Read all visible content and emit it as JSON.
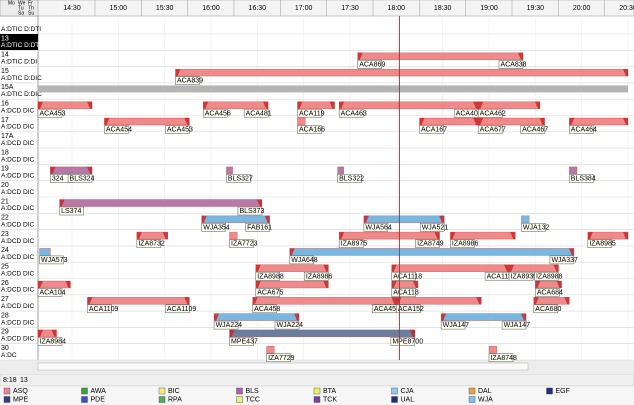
{
  "header": {
    "day_cells": [
      "Mo",
      "We",
      "Fr",
      "Tu",
      "Th",
      "Sa",
      "Su"
    ]
  },
  "timeline": {
    "xlim": [
      "14:08",
      "20:30"
    ],
    "ticks": [
      "14:30",
      "15:00",
      "15:30",
      "16:00",
      "16:30",
      "17:00",
      "17:30",
      "18:00",
      "18:30",
      "19:00",
      "19:30",
      "20:00",
      "20:30"
    ],
    "current_time": "18:02"
  },
  "rows": [
    {
      "label": "A:DTIC D:DTI",
      "flights": []
    },
    {
      "number": "13",
      "label": "A:DTIC D:DTI",
      "selected": true,
      "flights": []
    },
    {
      "number": "14",
      "label": "A:DTIC D:DI",
      "flights": [
        {
          "start": "17:35",
          "end": "19:22",
          "color": "#f08a8a",
          "labels": [
            "ACA869",
            "ACA838"
          ]
        }
      ]
    },
    {
      "number": "15",
      "label": "A:DTIC D:DIC",
      "flights": [
        {
          "start": "15:37",
          "end": "20:30",
          "color": "#f08a8a",
          "labels": [
            "ACA839"
          ]
        }
      ]
    },
    {
      "number": "15A",
      "label": "A:DTIC D:DIC",
      "flights": [
        {
          "start": "14:08",
          "end": "20:30",
          "color": "#b4b4b4",
          "labels": []
        }
      ]
    },
    {
      "number": "16",
      "label": "A:DCD DIC",
      "flights": [
        {
          "start": "14:08",
          "end": "14:43",
          "color": "#f08a8a",
          "labels": [
            "ACA453"
          ]
        },
        {
          "start": "15:55",
          "end": "16:37",
          "color": "#f08a8a",
          "labels": [
            "ACA456",
            "ACA481"
          ]
        },
        {
          "start": "16:56",
          "end": "17:20",
          "color": "#f08a8a",
          "labels": [
            "ACA119"
          ]
        },
        {
          "start": "17:23",
          "end": "18:53",
          "color": "#f08a8a",
          "labels": [
            "ACA463",
            "ACA405"
          ]
        },
        {
          "start": "18:53",
          "end": "19:33",
          "color": "#f08a8a",
          "labels": [
            "ACA462"
          ]
        }
      ]
    },
    {
      "number": "17",
      "label": "A:DCD DIC",
      "flights": [
        {
          "start": "14:51",
          "end": "15:46",
          "color": "#f08a8a",
          "labels": [
            "ACA454",
            "ACA453"
          ]
        },
        {
          "start": "16:56",
          "end": "17:01",
          "color": "#f08a8a",
          "labels": [
            "ACA166"
          ]
        },
        {
          "start": "18:15",
          "end": "18:53",
          "color": "#f08a8a",
          "labels": [
            "ACA167"
          ]
        },
        {
          "start": "18:53",
          "end": "19:36",
          "color": "#f08a8a",
          "labels": [
            "ACA677",
            "ACA467"
          ]
        },
        {
          "start": "19:52",
          "end": "20:30",
          "color": "#f08a8a",
          "labels": [
            "ACA464"
          ]
        }
      ]
    },
    {
      "number": "17A",
      "label": "A:DCD DIC",
      "flights": []
    },
    {
      "number": "18",
      "label": "A:DCD DIC",
      "flights": []
    },
    {
      "number": "19",
      "label": "A:DCD DIC",
      "flights": [
        {
          "start": "14:16",
          "end": "14:43",
          "color": "#b878a8",
          "labels": [
            "324",
            "BLS324"
          ]
        },
        {
          "start": "16:10",
          "end": "16:14",
          "color": "#b878a8",
          "labels": [
            "BLS327"
          ]
        },
        {
          "start": "17:22",
          "end": "17:26",
          "color": "#b878a8",
          "labels": [
            "BLS322"
          ]
        },
        {
          "start": "19:52",
          "end": "19:57",
          "color": "#b878a8",
          "labels": [
            "BLS384"
          ]
        }
      ]
    },
    {
      "number": "20",
      "label": "A:DCD DIC",
      "flights": []
    },
    {
      "number": "21",
      "label": "A:DCD DIC",
      "flights": [
        {
          "start": "14:22",
          "end": "16:33",
          "color": "#b878a8",
          "labels": [
            "LS374",
            "BLS373"
          ]
        }
      ]
    },
    {
      "number": "22",
      "label": "A:DCD DIC",
      "flights": [
        {
          "start": "15:54",
          "end": "16:38",
          "color": "#78b8e0",
          "labels": [
            "WJA354",
            "FAB161"
          ]
        },
        {
          "start": "17:39",
          "end": "18:31",
          "color": "#78b8e0",
          "labels": [
            "WJA564",
            "WJA521"
          ]
        },
        {
          "start": "19:21",
          "end": "19:26",
          "color": "#78b8e0",
          "labels": [
            "WJA132"
          ]
        }
      ]
    },
    {
      "number": "23",
      "label": "A:DCD DIC",
      "flights": [
        {
          "start": "15:12",
          "end": "15:32",
          "color": "#f08a8a",
          "labels": [
            "IZA8732"
          ]
        },
        {
          "start": "16:12",
          "end": "16:17",
          "color": "#f08a8a",
          "labels": [
            "IZA7723"
          ]
        },
        {
          "start": "17:23",
          "end": "18:28",
          "color": "#f08a8a",
          "labels": [
            "IZA8975",
            "IZA8749"
          ]
        },
        {
          "start": "18:35",
          "end": "19:17",
          "color": "#f08a8a",
          "labels": [
            "IZA8986"
          ]
        },
        {
          "start": "20:04",
          "end": "20:30",
          "color": "#f08a8a",
          "labels": [
            "IZA8985"
          ]
        }
      ]
    },
    {
      "number": "24",
      "label": "A:DCD DIC",
      "flights": [
        {
          "start": "14:09",
          "end": "14:16",
          "color": "#78b8e0",
          "labels": [
            "WJA573"
          ]
        },
        {
          "start": "16:51",
          "end": "19:55",
          "color": "#78b8e0",
          "labels": [
            "WJA648",
            "WJA337"
          ]
        }
      ]
    },
    {
      "number": "25",
      "label": "A:DCD DIC",
      "flights": [
        {
          "start": "16:29",
          "end": "17:16",
          "color": "#f08a8a",
          "labels": [
            "IZA8988",
            "IZA8986"
          ]
        },
        {
          "start": "17:57",
          "end": "19:13",
          "color": "#f08a8a",
          "labels": [
            "ACA1118",
            "ACA1185"
          ]
        },
        {
          "start": "19:13",
          "end": "19:45",
          "color": "#f08a8a",
          "labels": [
            "IZA8939",
            "IZA8988"
          ]
        }
      ]
    },
    {
      "number": "26",
      "label": "A:DCD DIC",
      "flights": [
        {
          "start": "14:08",
          "end": "14:29",
          "color": "#f08a8a",
          "labels": [
            "ACA104"
          ]
        },
        {
          "start": "16:29",
          "end": "17:16",
          "color": "#f08a8a",
          "labels": [
            "ACA675"
          ]
        },
        {
          "start": "17:57",
          "end": "18:14",
          "color": "#f08a8a",
          "labels": [
            "ACA118"
          ]
        },
        {
          "start": "19:30",
          "end": "19:47",
          "color": "#f08a8a",
          "labels": [
            "ACA684"
          ]
        }
      ]
    },
    {
      "number": "27",
      "label": "A:DCD DIC",
      "flights": [
        {
          "start": "14:40",
          "end": "15:46",
          "color": "#f08a8a",
          "labels": [
            "ACA1109",
            "ACA1109"
          ]
        },
        {
          "start": "16:27",
          "end": "18:00",
          "color": "#f08a8a",
          "labels": [
            "ACA458",
            "ACA459"
          ]
        },
        {
          "start": "18:00",
          "end": "18:55",
          "color": "#f08a8a",
          "labels": [
            "ACA152"
          ]
        },
        {
          "start": "19:29",
          "end": "19:52",
          "color": "#f08a8a",
          "labels": [
            "ACA680"
          ]
        }
      ]
    },
    {
      "number": "28",
      "label": "A:DCD DIC",
      "flights": [
        {
          "start": "16:02",
          "end": "16:57",
          "color": "#78b8e0",
          "labels": [
            "WJA224",
            "WJA224"
          ]
        },
        {
          "start": "18:29",
          "end": "19:24",
          "color": "#78b8e0",
          "labels": [
            "WJA147",
            "WJA147"
          ]
        }
      ]
    },
    {
      "number": "29",
      "label": "A:DCD DIC",
      "flights": [
        {
          "start": "14:08",
          "end": "14:20",
          "color": "#f08a8a",
          "labels": [
            "IZA8984"
          ]
        },
        {
          "start": "16:12",
          "end": "18:12",
          "color": "#6a7fa0",
          "labels": [
            "MPE437",
            "MPE8700"
          ]
        }
      ]
    },
    {
      "number": "30",
      "label": "A:DC",
      "flights": [
        {
          "start": "16:36",
          "end": "16:41",
          "color": "#f08a8a",
          "labels": [
            "IZA7729"
          ]
        },
        {
          "start": "19:00",
          "end": "19:05",
          "color": "#f08a8a",
          "labels": [
            "IZA8748"
          ]
        }
      ]
    }
  ],
  "status": {
    "time": "8:18",
    "row": "13"
  },
  "legend": [
    {
      "name": "ASQ",
      "color": "#f080a0"
    },
    {
      "name": "AWA",
      "color": "#40a040"
    },
    {
      "name": "BIC",
      "color": "#f0f080"
    },
    {
      "name": "BLS",
      "color": "#b060b0"
    },
    {
      "name": "BTA",
      "color": "#f0f060"
    },
    {
      "name": "CJA",
      "color": "#90c8f0"
    },
    {
      "name": "DAL",
      "color": "#f0a040"
    },
    {
      "name": "EGF",
      "color": "#203080"
    },
    {
      "name": "MPE",
      "color": "#304080"
    },
    {
      "name": "PDE",
      "color": "#3050d0"
    },
    {
      "name": "RPA",
      "color": "#50b050"
    },
    {
      "name": "TCC",
      "color": "#f0f070"
    },
    {
      "name": "TCK",
      "color": "#8040a0"
    },
    {
      "name": "UAL",
      "color": "#203070"
    },
    {
      "name": "WJA",
      "color": "#80c0f0"
    }
  ]
}
